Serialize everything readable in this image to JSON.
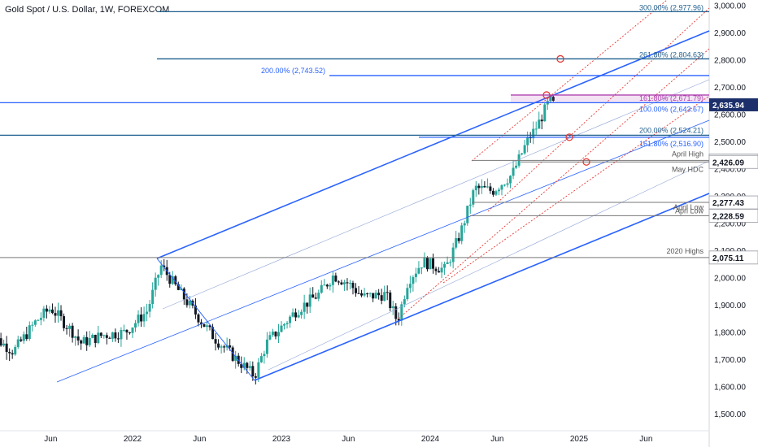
{
  "chart_data": {
    "type": "candlestick",
    "title": "Gold Spot / U.S. Dollar, 1W, FOREXCOM",
    "ylim": [
      1450,
      3050
    ],
    "y_ticks": [
      "3,000.00",
      "2,900.00",
      "2,800.00",
      "2,700.00",
      "2,600.00",
      "2,500.00",
      "2,400.00",
      "2,300.00",
      "2,200.00",
      "2,100.00",
      "2,000.00",
      "1,900.00",
      "1,800.00",
      "1,700.00",
      "1,600.00",
      "1,500.00"
    ],
    "x_ticks": [
      "Jun",
      "2022",
      "Jun",
      "2023",
      "Jun",
      "2024",
      "Jun",
      "2025",
      "Jun"
    ],
    "grid": false,
    "colors": {
      "up": "#26a69a",
      "down": "#131722",
      "channel": "#2962ff",
      "fib": "#1e5f8e",
      "red": "#e53935",
      "magenta": "#b040b0",
      "gray": "#777777"
    },
    "levels": [
      {
        "label": "300.00% (2,977.96)",
        "value": 2977.96,
        "color": "#1e5f8e"
      },
      {
        "label": "261.80% (2,804.63)",
        "value": 2804.63,
        "color": "#1e5f8e"
      },
      {
        "label": "200.00% (2,743.52)",
        "value": 2743.52,
        "color": "#2962ff"
      },
      {
        "label": "161.80% (2,671.79)",
        "value": 2671.79,
        "color": "#b040b0"
      },
      {
        "label": "100.00% (2,643.67)",
        "value": 2643.67,
        "color": "#2962ff"
      },
      {
        "label": "200.00% (2,524.21)",
        "value": 2524.21,
        "color": "#1e5f8e"
      },
      {
        "label": "161.80% (2,516.90)",
        "value": 2516.9,
        "color": "#2962ff"
      },
      {
        "label": "April High",
        "value": 2431.55,
        "color": "#777777"
      },
      {
        "label": "May HDC",
        "value": 2426.09,
        "color": "#777777"
      },
      {
        "label": "April Low",
        "value": 2277.43,
        "color": "#777777"
      },
      {
        "label": "Apri Low",
        "value": 2228.59,
        "color": "#777777"
      },
      {
        "label": "2020 Highs",
        "value": 2075.11,
        "color": "#777777"
      }
    ],
    "price_badges": [
      {
        "text": "2,635.94",
        "value": 2635.94,
        "current": true
      },
      {
        "text": "2,431.55",
        "value": 2431.55
      },
      {
        "text": "2,426.09",
        "value": 2426.09
      },
      {
        "text": "2,277.43",
        "value": 2277.43
      },
      {
        "text": "2,228.59",
        "value": 2228.59
      },
      {
        "text": "2,075.11",
        "value": 2075.11
      }
    ],
    "series": [
      {
        "x": "2021-06",
        "open": 1850,
        "high": 1890,
        "low": 1770,
        "close": 1780
      },
      {
        "x": "2021-12",
        "open": 1790,
        "high": 1830,
        "low": 1760,
        "close": 1810
      },
      {
        "x": "2022-03",
        "open": 1900,
        "high": 2075,
        "low": 1890,
        "close": 1960
      },
      {
        "x": "2022-09",
        "open": 1700,
        "high": 1730,
        "low": 1615,
        "close": 1650
      },
      {
        "x": "2023-04",
        "open": 1980,
        "high": 2080,
        "low": 1960,
        "close": 2000
      },
      {
        "x": "2023-10",
        "open": 1820,
        "high": 1840,
        "low": 1810,
        "close": 1830
      },
      {
        "x": "2023-12",
        "open": 2040,
        "high": 2150,
        "low": 2010,
        "close": 2060
      },
      {
        "x": "2024-04",
        "open": 2330,
        "high": 2431,
        "low": 2290,
        "close": 2390
      },
      {
        "x": "2024-10",
        "open": 2620,
        "high": 2685,
        "low": 2600,
        "close": 2636
      }
    ]
  }
}
